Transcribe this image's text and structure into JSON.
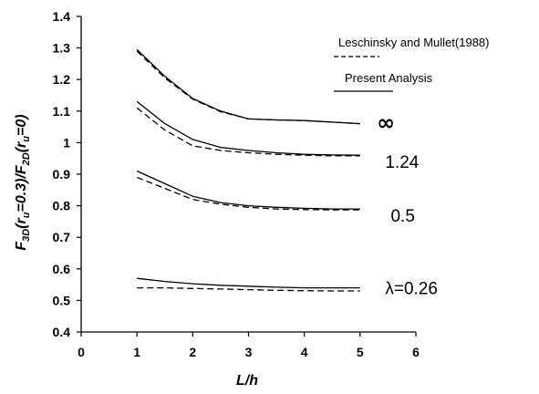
{
  "chart_data": {
    "type": "line",
    "xlabel": "L/h",
    "ylabel": "F3D(ru=0.3)/F2D(ru=0)",
    "ylabel_parts": {
      "F1": "F",
      "sub1": "3D",
      "mid": "(r",
      "u1": "u",
      "eq1": "=0.3)/F",
      "sub2": "2D",
      "mid2": "(r",
      "u2": "u",
      "eq2": "=0)"
    },
    "xlim": [
      0,
      6
    ],
    "ylim": [
      0.4,
      1.4
    ],
    "x_ticks": [
      "0",
      "1",
      "2",
      "3",
      "4",
      "5",
      "6"
    ],
    "y_ticks": [
      "0.4",
      "0.5",
      "0.6",
      "0.7",
      "0.8",
      "0.9",
      "1",
      "1.1",
      "1.2",
      "1.3",
      "1.4"
    ],
    "grid": false,
    "legend_position": "top-right",
    "legend": [
      {
        "label": "Leschinsky and Mullet(1988)",
        "style": "dashed"
      },
      {
        "label": "Present Analysis",
        "style": "solid"
      }
    ],
    "series": [
      {
        "curve": "∞",
        "style": "solid",
        "x": [
          1,
          1.5,
          2,
          2.5,
          3,
          3.5,
          4,
          4.5,
          5
        ],
        "y": [
          1.295,
          1.21,
          1.14,
          1.1,
          1.075,
          1.072,
          1.07,
          1.065,
          1.06
        ]
      },
      {
        "curve": "∞",
        "style": "dashed",
        "x": [
          1,
          1.5,
          2,
          2.5,
          3,
          3.5,
          4,
          4.5,
          5
        ],
        "y": [
          1.29,
          1.205,
          1.138,
          1.098,
          1.075,
          1.072,
          1.07,
          1.065,
          1.06
        ]
      },
      {
        "curve": "1.24",
        "style": "solid",
        "x": [
          1,
          1.5,
          2,
          2.5,
          3,
          3.5,
          4,
          4.5,
          5
        ],
        "y": [
          1.13,
          1.06,
          1.01,
          0.985,
          0.975,
          0.968,
          0.963,
          0.961,
          0.96
        ]
      },
      {
        "curve": "1.24",
        "style": "dashed",
        "x": [
          1,
          1.5,
          2,
          2.5,
          3,
          3.5,
          4,
          4.5,
          5
        ],
        "y": [
          1.11,
          1.04,
          0.99,
          0.975,
          0.968,
          0.963,
          0.96,
          0.958,
          0.958
        ]
      },
      {
        "curve": "0.5",
        "style": "solid",
        "x": [
          1,
          1.5,
          2,
          2.5,
          3,
          3.5,
          4,
          4.5,
          5
        ],
        "y": [
          0.91,
          0.87,
          0.83,
          0.81,
          0.8,
          0.795,
          0.792,
          0.79,
          0.79
        ]
      },
      {
        "curve": "0.5",
        "style": "dashed",
        "x": [
          1,
          1.5,
          2,
          2.5,
          3,
          3.5,
          4,
          4.5,
          5
        ],
        "y": [
          0.89,
          0.855,
          0.82,
          0.805,
          0.795,
          0.79,
          0.788,
          0.787,
          0.787
        ]
      },
      {
        "curve": "λ=0.26",
        "style": "solid",
        "x": [
          1,
          1.5,
          2,
          2.5,
          3,
          3.5,
          4,
          4.5,
          5
        ],
        "y": [
          0.57,
          0.56,
          0.553,
          0.548,
          0.545,
          0.542,
          0.54,
          0.54,
          0.54
        ]
      },
      {
        "curve": "λ=0.26",
        "style": "dashed",
        "x": [
          1,
          1.5,
          2,
          2.5,
          3,
          3.5,
          4,
          4.5,
          5
        ],
        "y": [
          0.54,
          0.54,
          0.538,
          0.536,
          0.534,
          0.532,
          0.531,
          0.53,
          0.53
        ]
      }
    ],
    "curve_labels": [
      {
        "text": "∞",
        "x": 5.3,
        "y": 1.06
      },
      {
        "text": "1.24",
        "x": 5.45,
        "y": 0.94
      },
      {
        "text": "0.5",
        "x": 5.55,
        "y": 0.77
      },
      {
        "text": "λ=0.26",
        "x": 5.45,
        "y": 0.54
      }
    ],
    "line_color": "#000000"
  }
}
